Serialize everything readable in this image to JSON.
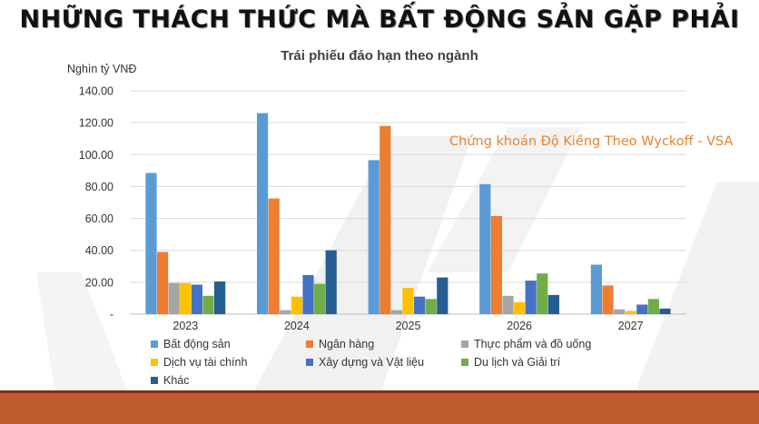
{
  "slide": {
    "title": "NHỮNG THÁCH THỨC MÀ BẤT ĐỘNG SẢN GẶP PHẢI",
    "watermark": "Chứng khoán Độ Kiềng Theo Wyckoff - VSA",
    "footer_color": "#bd5a2e"
  },
  "chart_data": {
    "type": "bar",
    "title": "Trái phiếu đáo hạn theo ngành",
    "ylabel": "Nghìn tỷ VNĐ",
    "xlabel": "",
    "ylim": [
      0,
      140
    ],
    "yticks": [
      "-",
      "20.00",
      "40.00",
      "60.00",
      "80.00",
      "100.00",
      "120.00",
      "140.00"
    ],
    "grid": true,
    "legend_position": "bottom",
    "categories": [
      "2023",
      "2024",
      "2025",
      "2026",
      "2027"
    ],
    "series": [
      {
        "name": "Bất động sản",
        "color": "#5b9bd5",
        "values": [
          88.5,
          126,
          96.5,
          81.5,
          31
        ]
      },
      {
        "name": "Ngân hàng",
        "color": "#ed7d31",
        "values": [
          39,
          72.5,
          118,
          61.5,
          18
        ]
      },
      {
        "name": "Thực phẩm và đồ uống",
        "color": "#a5a5a5",
        "values": [
          19.5,
          2.5,
          2.5,
          11.5,
          3
        ]
      },
      {
        "name": "Dịch vụ tài chính",
        "color": "#ffc000",
        "values": [
          19.5,
          11,
          16.5,
          7.5,
          2
        ]
      },
      {
        "name": "Xây dựng và Vật liệu",
        "color": "#4472c4",
        "values": [
          18.5,
          24.5,
          11,
          21,
          6
        ]
      },
      {
        "name": "Du lịch và Giải trí",
        "color": "#70ad47",
        "values": [
          11.5,
          19,
          9.5,
          25.5,
          9.5
        ]
      },
      {
        "name": "Khác",
        "color": "#255e91",
        "values": [
          20.5,
          40,
          23,
          12,
          3.5
        ]
      }
    ]
  }
}
